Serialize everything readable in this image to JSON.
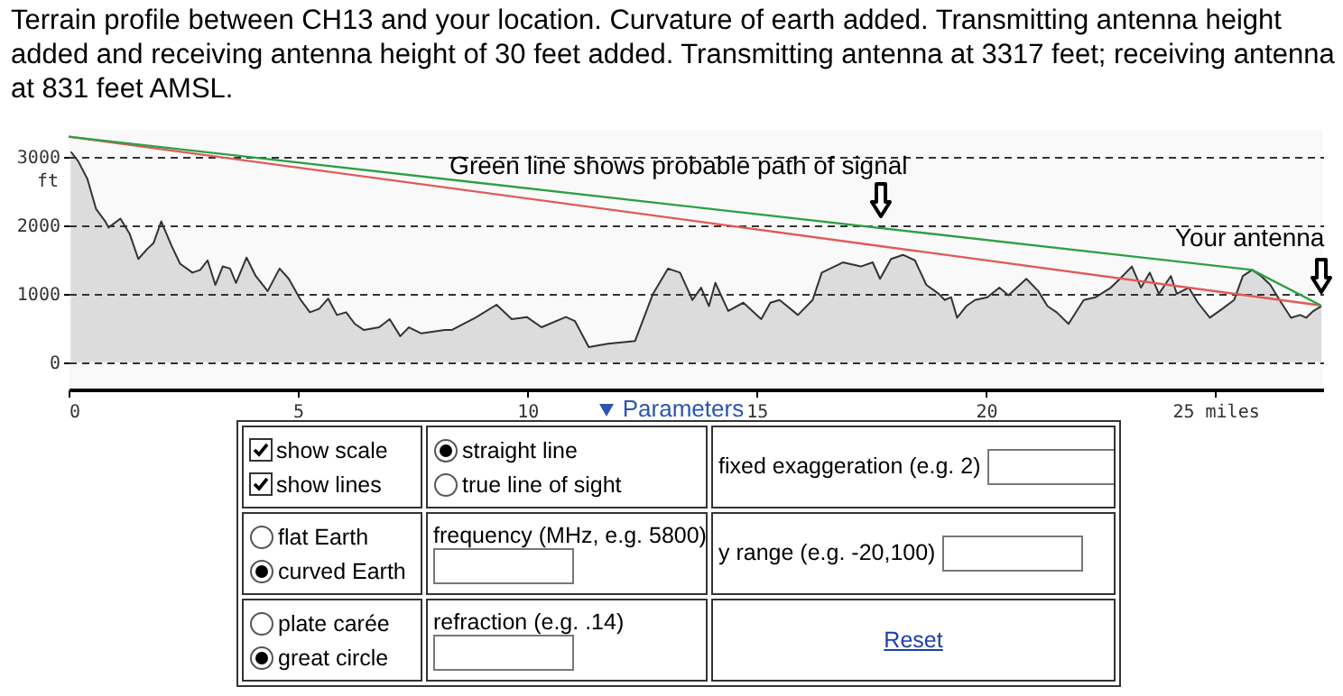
{
  "chart_data": [
    {
      "type": "line",
      "title": "Terrain profile between CH13 and your location. Curvature of earth added. Transmitting antenna height added and receiving antenna height of 30 feet added. Transmitting antenna at 3317 feet; receiving antenna at 831 feet AMSL.",
      "ylabel": "ft",
      "xlim": [
        0,
        27.35
      ],
      "xticks": [
        0,
        5,
        10,
        15,
        20,
        {
          "value": 25,
          "label": "25 miles"
        }
      ],
      "ylim": [
        -400,
        3400
      ],
      "yticks": [
        0,
        1000,
        2000,
        3000
      ],
      "grid": "y",
      "marker": "none",
      "line_style": "solid",
      "annotations": [
        {
          "text": "Green line shows probable path of signal",
          "x": 17.7,
          "y": 1960
        },
        {
          "text": "Your antenna",
          "x": 27.3,
          "y": 831
        }
      ],
      "series": [
        {
          "type": "area",
          "color": "#333333",
          "x": [
            0.05,
            0.21,
            0.41,
            0.6,
            0.8,
            0.87,
            1.13,
            1.33,
            1.52,
            1.72,
            1.85,
            2.02,
            2.24,
            2.43,
            2.7,
            2.87,
            3.03,
            3.2,
            3.36,
            3.52,
            3.65,
            3.88,
            4.08,
            4.34,
            4.6,
            4.8,
            5.06,
            5.26,
            5.46,
            5.66,
            5.85,
            6.05,
            6.24,
            6.44,
            6.77,
            7.0,
            7.23,
            7.42,
            7.69,
            8.2,
            8.35,
            8.87,
            9.33,
            9.66,
            9.99,
            10.31,
            10.84,
            11.04,
            11.34,
            11.76,
            12.35,
            12.74,
            13.07,
            13.33,
            13.6,
            13.79,
            13.96,
            14.1,
            14.38,
            14.71,
            15.1,
            15.3,
            15.5,
            15.9,
            16.22,
            16.42,
            16.88,
            17.27,
            17.53,
            17.69,
            17.93,
            18.19,
            18.45,
            18.7,
            18.97,
            19.1,
            19.24,
            19.37,
            19.57,
            19.76,
            20.03,
            20.29,
            20.49,
            20.88,
            21.14,
            21.34,
            21.54,
            21.8,
            22.13,
            22.39,
            22.72,
            22.92,
            23.18,
            23.38,
            23.57,
            23.77,
            24.03,
            24.16,
            24.42,
            24.62,
            24.88,
            25.15,
            25.41,
            25.6,
            25.8,
            26.0,
            26.2,
            26.4,
            26.65,
            26.85,
            26.98,
            27.14,
            27.31
          ],
          "values": [
            3080,
            2940,
            2680,
            2240,
            2060,
            1970,
            2100,
            1880,
            1510,
            1660,
            1740,
            2060,
            1710,
            1440,
            1310,
            1350,
            1490,
            1130,
            1400,
            1370,
            1160,
            1530,
            1260,
            1040,
            1370,
            1220,
            910,
            730,
            780,
            930,
            690,
            730,
            560,
            470,
            510,
            630,
            380,
            510,
            420,
            470,
            470,
            650,
            840,
            630,
            660,
            510,
            660,
            600,
            220,
            270,
            310,
            1000,
            1370,
            1310,
            910,
            1090,
            820,
            1160,
            750,
            870,
            630,
            870,
            910,
            690,
            910,
            1310,
            1460,
            1400,
            1460,
            1220,
            1510,
            1570,
            1490,
            1130,
            1000,
            910,
            950,
            650,
            820,
            910,
            950,
            1090,
            980,
            1220,
            1040,
            820,
            730,
            560,
            910,
            950,
            1090,
            1220,
            1400,
            1090,
            1310,
            1000,
            1260,
            1000,
            1090,
            870,
            650,
            780,
            910,
            1260,
            1350,
            1260,
            1130,
            910,
            650,
            690,
            650,
            750,
            820
          ]
        },
        {
          "type": "line",
          "color": "#e05a5a",
          "x": [
            0,
            27.3
          ],
          "values": [
            3300,
            830
          ]
        },
        {
          "type": "line",
          "color": "#2ca044",
          "x": [
            0,
            25.8,
            27.3
          ],
          "values": [
            3300,
            1350,
            830
          ]
        }
      ]
    },
    {
      "type": "other",
      "title": "Parameters",
      "annotations": [
        "show scale",
        "show lines",
        "straight line",
        "true line of sight",
        "fixed exaggeration (e.g. 2)",
        "flat Earth",
        "curved Earth",
        "frequency (MHz, e.g. 5800)",
        "y range (e.g. -20,100)",
        "plate carée",
        "great circle",
        "refraction (e.g. .14)",
        "Reset"
      ]
    }
  ]
}
